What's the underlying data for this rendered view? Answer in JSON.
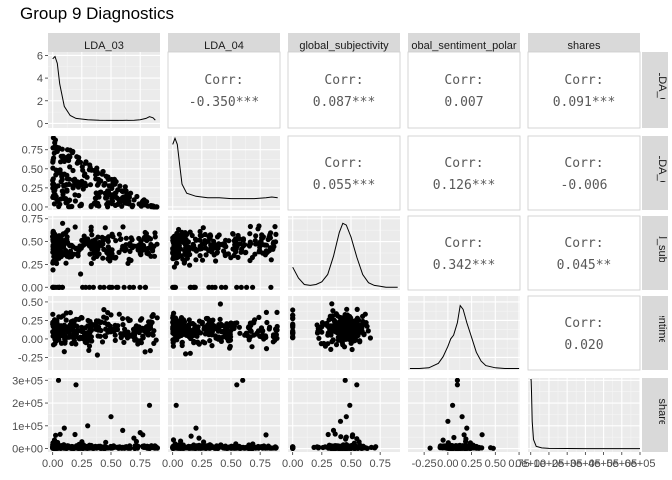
{
  "title": "Group 9 Diagnostics",
  "chart_data": {
    "type": "scatter-matrix",
    "title": "Group 9 Diagnostics",
    "variables": [
      "LDA_03",
      "LDA_04",
      "global_subjectivity",
      "global_sentiment_polarity",
      "shares"
    ],
    "column_strips": [
      "LDA_03",
      "LDA_04",
      "global_subjectivity",
      "obal_sentiment_polar",
      "shares"
    ],
    "row_strips": [
      "LDA_03",
      "LDA_04",
      "obal_subjectiv",
      "_sentiment_p",
      "shares"
    ],
    "correlations": [
      {
        "row": 0,
        "col": 1,
        "label": "Corr:",
        "value": "-0.350***"
      },
      {
        "row": 0,
        "col": 2,
        "label": "Corr:",
        "value": "0.087***"
      },
      {
        "row": 0,
        "col": 3,
        "label": "Corr:",
        "value": "0.007"
      },
      {
        "row": 0,
        "col": 4,
        "label": "Corr:",
        "value": "0.091***"
      },
      {
        "row": 1,
        "col": 2,
        "label": "Corr:",
        "value": "0.055***"
      },
      {
        "row": 1,
        "col": 3,
        "label": "Corr:",
        "value": "0.126***"
      },
      {
        "row": 1,
        "col": 4,
        "label": "Corr:",
        "value": "-0.006"
      },
      {
        "row": 2,
        "col": 3,
        "label": "Corr:",
        "value": "0.342***"
      },
      {
        "row": 2,
        "col": 4,
        "label": "Corr:",
        "value": "0.045**"
      },
      {
        "row": 3,
        "col": 4,
        "label": "Corr:",
        "value": "0.020"
      }
    ],
    "x_ranges": [
      [
        -0.04,
        0.92
      ],
      [
        -0.04,
        0.92
      ],
      [
        -0.04,
        0.92
      ],
      [
        -0.42,
        0.76
      ],
      [
        -15000,
        600000
      ]
    ],
    "y_ranges": [
      [
        -0.4,
        6.3
      ],
      [
        -0.04,
        0.93
      ],
      [
        -0.03,
        0.78
      ],
      [
        -0.42,
        0.58
      ],
      [
        -15000,
        310000
      ]
    ],
    "x_ticks": [
      [
        "0.00",
        "0.25",
        "0.50",
        "0.75"
      ],
      [
        "0.00",
        "0.25",
        "0.50",
        "0.75"
      ],
      [
        "0.00",
        "0.25",
        "0.50",
        "0.75"
      ],
      [
        "-0.25",
        "0.00",
        "0.25",
        "0.50",
        "0.75"
      ],
      [
        "0e+00",
        "1e+05",
        "2e+05",
        "3e+05",
        "4e+05",
        "5e+05",
        "6e+05"
      ]
    ],
    "x_tick_values": [
      [
        0,
        0.25,
        0.5,
        0.75
      ],
      [
        0,
        0.25,
        0.5,
        0.75
      ],
      [
        0,
        0.25,
        0.5,
        0.75
      ],
      [
        -0.25,
        0,
        0.25,
        0.5,
        0.75
      ],
      [
        0,
        100000,
        200000,
        300000,
        400000,
        500000,
        600000
      ]
    ],
    "y_ticks": [
      [
        "0",
        "2",
        "4",
        "6"
      ],
      [
        "0.00",
        "0.25",
        "0.50",
        "0.75"
      ],
      [
        "0.00",
        "0.25",
        "0.50",
        "0.75"
      ],
      [
        "-0.25",
        "0.00",
        "0.25",
        "0.50"
      ],
      [
        "0e+00",
        "1e+05",
        "2e+05",
        "3e+05"
      ]
    ],
    "y_tick_values": [
      [
        0,
        2,
        4,
        6
      ],
      [
        0,
        0.25,
        0.5,
        0.75
      ],
      [
        0,
        0.25,
        0.5,
        0.75
      ],
      [
        -0.25,
        0,
        0.25,
        0.5
      ],
      [
        0,
        100000,
        200000,
        300000
      ]
    ],
    "densities": [
      {
        "var": 0,
        "x": [
          0.0,
          0.02,
          0.04,
          0.06,
          0.1,
          0.15,
          0.2,
          0.3,
          0.4,
          0.5,
          0.6,
          0.7,
          0.75,
          0.8,
          0.83,
          0.86,
          0.88
        ],
        "y": [
          5.7,
          5.9,
          5.3,
          3.5,
          1.5,
          0.7,
          0.45,
          0.32,
          0.28,
          0.27,
          0.27,
          0.29,
          0.33,
          0.45,
          0.6,
          0.5,
          0.3
        ]
      },
      {
        "var": 1,
        "x": [
          0.0,
          0.02,
          0.04,
          0.06,
          0.08,
          0.12,
          0.2,
          0.3,
          0.4,
          0.5,
          0.6,
          0.7,
          0.8,
          0.85,
          0.9
        ],
        "y": [
          0.82,
          0.9,
          0.82,
          0.55,
          0.3,
          0.18,
          0.14,
          0.12,
          0.12,
          0.11,
          0.11,
          0.11,
          0.12,
          0.13,
          0.12
        ]
      },
      {
        "var": 2,
        "x": [
          0.0,
          0.05,
          0.1,
          0.15,
          0.2,
          0.25,
          0.3,
          0.35,
          0.4,
          0.43,
          0.46,
          0.5,
          0.55,
          0.6,
          0.65,
          0.7,
          0.75,
          0.8,
          0.9
        ],
        "y": [
          0.22,
          0.1,
          0.03,
          0.02,
          0.03,
          0.06,
          0.14,
          0.34,
          0.6,
          0.7,
          0.68,
          0.55,
          0.33,
          0.14,
          0.05,
          0.02,
          0.01,
          0.0,
          0.0
        ]
      },
      {
        "var": 3,
        "x": [
          -0.4,
          -0.3,
          -0.2,
          -0.1,
          -0.05,
          0.0,
          0.03,
          0.06,
          0.1,
          0.13,
          0.16,
          0.2,
          0.25,
          0.3,
          0.35,
          0.4,
          0.5,
          0.6,
          0.75
        ],
        "y": [
          -0.4,
          -0.4,
          -0.39,
          -0.33,
          -0.24,
          -0.1,
          0.0,
          0.05,
          0.22,
          0.45,
          0.4,
          0.22,
          0.02,
          -0.18,
          -0.3,
          -0.36,
          -0.39,
          -0.4,
          -0.4
        ]
      },
      {
        "var": 4,
        "x": [
          0,
          2000,
          4000,
          8000,
          15000,
          30000,
          60000,
          100000,
          200000,
          300000,
          400000,
          500000,
          600000
        ],
        "y": [
          300000,
          305000,
          250000,
          120000,
          40000,
          10000,
          3000,
          1000,
          200,
          100,
          50,
          20,
          10
        ]
      }
    ],
    "scatter_notes": [
      {
        "row": 4,
        "col": 0,
        "outliers": [
          [
            0.05,
            300000
          ],
          [
            0.2,
            280000
          ],
          [
            0.83,
            190000
          ],
          [
            0.5,
            140000
          ],
          [
            0.3,
            100000
          ],
          [
            0.6,
            80000
          ],
          [
            0.1,
            90000
          ],
          [
            0.75,
            70000
          ]
        ]
      },
      {
        "row": 4,
        "col": 1,
        "outliers": [
          [
            0.03,
            190000
          ],
          [
            0.55,
            280000
          ],
          [
            0.6,
            300000
          ],
          [
            0.2,
            90000
          ],
          [
            0.8,
            60000
          ]
        ]
      },
      {
        "row": 4,
        "col": 2,
        "outliers": [
          [
            0.45,
            300000
          ],
          [
            0.55,
            280000
          ],
          [
            0.46,
            140000
          ],
          [
            0.49,
            190000
          ],
          [
            0.41,
            120000
          ],
          [
            0.35,
            80000
          ]
        ]
      },
      {
        "row": 4,
        "col": 3,
        "outliers": [
          [
            0.1,
            300000
          ],
          [
            0.1,
            280000
          ],
          [
            0.05,
            190000
          ],
          [
            0.15,
            140000
          ],
          [
            0.0,
            120000
          ],
          [
            0.2,
            90000
          ]
        ]
      }
    ]
  }
}
